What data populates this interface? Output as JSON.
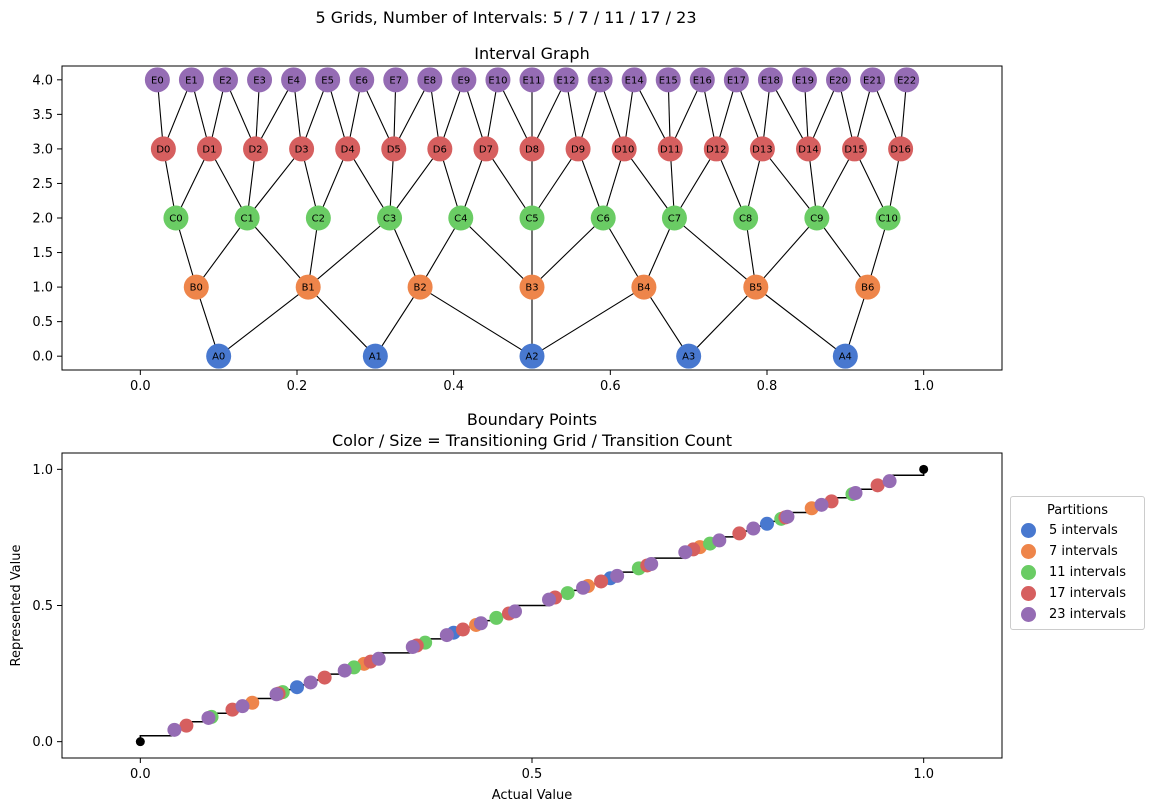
{
  "suptitle": "5 Grids, Number of Intervals: 5 / 7 / 11 / 17 / 23",
  "legend": {
    "title": "Partitions",
    "items": [
      "5 intervals",
      "7 intervals",
      "11 intervals",
      "17 intervals",
      "23 intervals"
    ]
  },
  "colors": [
    "#4878cf",
    "#ee854a",
    "#6acc64",
    "#d65f5f",
    "#956cb4"
  ],
  "chart_data": [
    {
      "type": "network",
      "title": "Interval Graph",
      "xlim": [
        -0.1,
        1.1
      ],
      "ylim": [
        -0.2,
        4.2
      ],
      "xticks": [
        0.0,
        0.2,
        0.4,
        0.6,
        0.8,
        1.0
      ],
      "xtick_labels": [
        "0.0",
        "0.2",
        "0.4",
        "0.6",
        "0.8",
        "1.0"
      ],
      "yticks": [
        0.0,
        0.5,
        1.0,
        1.5,
        2.0,
        2.5,
        3.0,
        3.5,
        4.0
      ],
      "ytick_labels": [
        "0.0",
        "0.5",
        "1.0",
        "1.5",
        "2.0",
        "2.5",
        "3.0",
        "3.5",
        "4.0"
      ],
      "levels": [
        {
          "prefix": "A",
          "y": 0,
          "count": 5
        },
        {
          "prefix": "B",
          "y": 1,
          "count": 7
        },
        {
          "prefix": "C",
          "y": 2,
          "count": 11
        },
        {
          "prefix": "D",
          "y": 3,
          "count": 17
        },
        {
          "prefix": "E",
          "y": 4,
          "count": 23
        }
      ],
      "edges": "nodes in adjacent levels are connected when their intervals overlap"
    },
    {
      "type": "scatter",
      "title": "Boundary Points\nColor / Size = Transitioning Grid / Transition Count",
      "xlabel": "Actual Value",
      "ylabel": "Represented Value",
      "xlim": [
        -0.1,
        1.1
      ],
      "ylim": [
        -0.06,
        1.06
      ],
      "xticks": [
        0.0,
        0.5,
        1.0
      ],
      "xtick_labels": [
        "0.0",
        "0.5",
        "1.0"
      ],
      "yticks": [
        0.0,
        0.5,
        1.0
      ],
      "ytick_labels": [
        "0.0",
        "0.5",
        "1.0"
      ],
      "series": [
        {
          "name": "5 intervals",
          "x": [
            0.2,
            0.4,
            0.6,
            0.8
          ]
        },
        {
          "name": "7 intervals",
          "x": [
            0.1429,
            0.2857,
            0.4286,
            0.5714,
            0.7143,
            0.8571
          ]
        },
        {
          "name": "11 intervals",
          "x": [
            0.0909,
            0.1818,
            0.2727,
            0.3636,
            0.4545,
            0.5455,
            0.6364,
            0.7273,
            0.8182,
            0.9091
          ]
        },
        {
          "name": "17 intervals",
          "x": [
            0.0588,
            0.1176,
            0.1765,
            0.2353,
            0.2941,
            0.3529,
            0.4118,
            0.4706,
            0.5294,
            0.5882,
            0.6471,
            0.7059,
            0.7647,
            0.8235,
            0.8824,
            0.9412
          ]
        },
        {
          "name": "23 intervals",
          "x": [
            0.0435,
            0.087,
            0.1304,
            0.1739,
            0.2174,
            0.2609,
            0.3043,
            0.3478,
            0.3913,
            0.4348,
            0.4783,
            0.5217,
            0.5652,
            0.6087,
            0.6522,
            0.6957,
            0.7391,
            0.7826,
            0.8261,
            0.8696,
            0.913,
            0.9565
          ]
        }
      ],
      "step_line": "represented value steps along actual value from (0,0) to (1,1)",
      "endpoints": [
        [
          0,
          0
        ],
        [
          1,
          1
        ]
      ]
    }
  ]
}
